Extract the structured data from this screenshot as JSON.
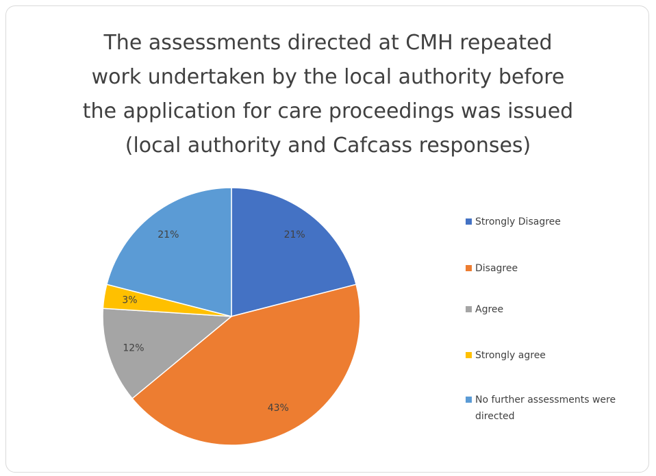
{
  "chart_data": {
    "type": "pie",
    "title": [
      "The assessments directed at CMH repeated",
      "work undertaken by the local authority before",
      "the application for care proceedings was issued",
      "(local authority and Cafcass responses)"
    ],
    "categories": [
      "Strongly Disagree",
      "Disagree",
      "Agree",
      "Strongly agree",
      "No further assessments were directed"
    ],
    "values": [
      21,
      43,
      12,
      3,
      21
    ],
    "value_labels": [
      "21%",
      "43%",
      "12%",
      "3%",
      "21%"
    ],
    "colors": [
      "#4472c4",
      "#ed7d31",
      "#a5a5a5",
      "#ffc000",
      "#5b9bd5"
    ],
    "legend": "right"
  }
}
